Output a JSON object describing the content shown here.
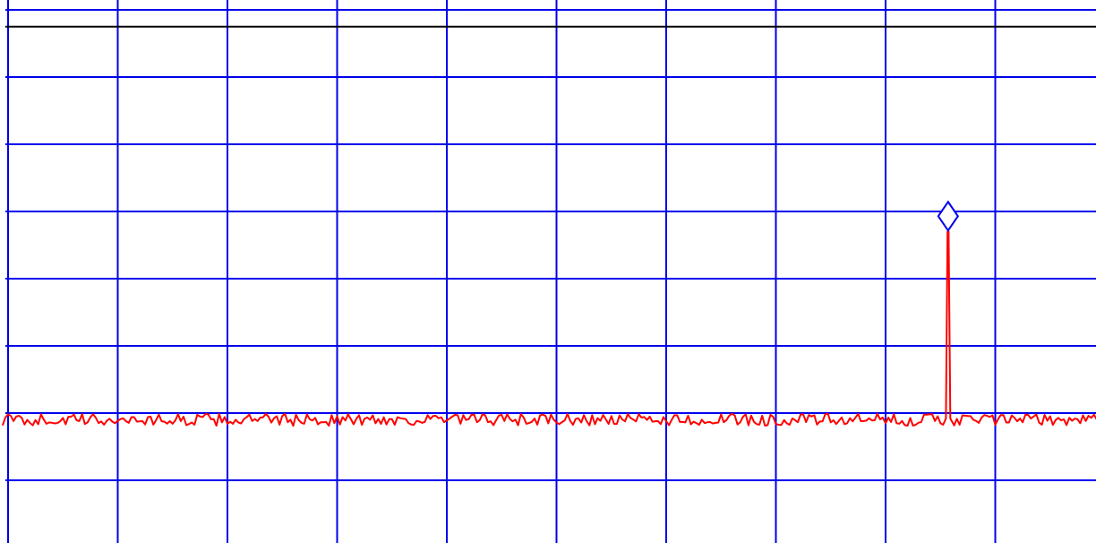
{
  "colors": {
    "background": "#ffffff",
    "grid": "#0000ee",
    "trace": "#ff0000",
    "reference_line": "#000000",
    "marker": "#0000ee"
  },
  "chart_data": {
    "type": "line",
    "title": "",
    "xlabel": "",
    "ylabel": "",
    "grid": true,
    "legend": "none",
    "x_divisions": 10,
    "y_divisions": 8,
    "xlim": [
      0,
      10
    ],
    "ylim": [
      -8,
      0
    ],
    "reference_line": {
      "y": -0.25,
      "color": "#000000"
    },
    "series": [
      {
        "noise_floor": -6.1,
        "noise_peak_to_peak": 0.18,
        "points_per_division": 40,
        "x_start": -0.05,
        "x_end": 10.05,
        "color": "#ff0000"
      }
    ],
    "peak": {
      "x": 8.57,
      "y": -3.3,
      "width_div": 0.04
    },
    "marker": {
      "type": "diamond",
      "x": 8.57,
      "y": -3.07,
      "color": "#0000ee"
    }
  }
}
